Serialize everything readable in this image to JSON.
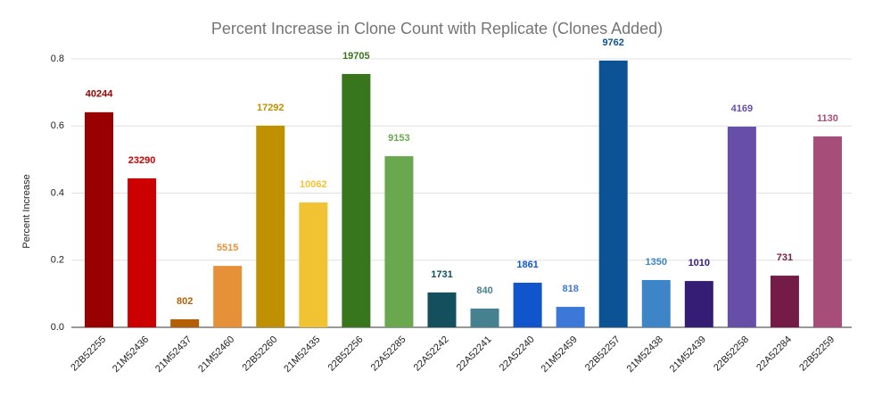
{
  "chart_data": {
    "type": "bar",
    "title": "Percent Increase in Clone Count with Replicate (Clones Added)",
    "y_label": "Percent Increase",
    "categories": [
      "22B52255",
      "21M52436",
      "21M52437",
      "21M52460",
      "22B52260",
      "21M52435",
      "22B52256",
      "22A52285",
      "22A52242",
      "22A52241",
      "22A52240",
      "21M52459",
      "22B52257",
      "21M52438",
      "21M52439",
      "22B52258",
      "22A52284",
      "22B52259"
    ],
    "values": [
      0.641,
      0.444,
      0.024,
      0.183,
      0.601,
      0.372,
      0.755,
      0.51,
      0.104,
      0.056,
      0.133,
      0.061,
      0.795,
      0.141,
      0.138,
      0.598,
      0.154,
      0.569
    ],
    "clones_added": [
      40244,
      23290,
      802,
      5515,
      17292,
      10062,
      19705,
      9153,
      1731,
      840,
      1861,
      818,
      9762,
      1350,
      1010,
      4169,
      731,
      1130
    ],
    "colors": [
      "#990000",
      "#cc0000",
      "#b45f06",
      "#e69138",
      "#bf9000",
      "#f1c232",
      "#38761d",
      "#6aa84f",
      "#134f5c",
      "#45818e",
      "#1155cc",
      "#3c78d8",
      "#0b5394",
      "#3d85c6",
      "#351c75",
      "#674ea7",
      "#741b47",
      "#a64d79"
    ],
    "ylim": [
      0,
      0.8
    ],
    "yticks": [
      {
        "value": 0,
        "label": "0.0"
      },
      0.2,
      0.4,
      0.6,
      0.8
    ],
    "grid": true
  }
}
